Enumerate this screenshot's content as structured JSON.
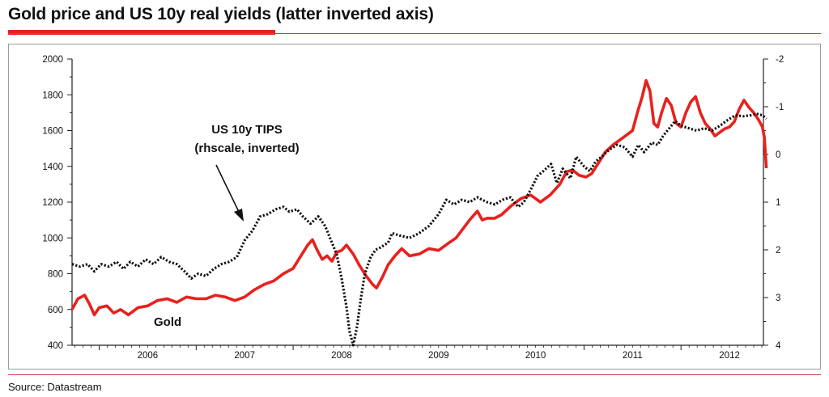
{
  "header": {
    "title": "Gold price and US 10y real yields (latter inverted axis)"
  },
  "footer": {
    "source": "Source: Datastream"
  },
  "colors": {
    "gold": "#e8211d",
    "tips": "#111111",
    "accent_rule": "#e8211d"
  },
  "chart_data": {
    "type": "line",
    "title": "Gold price and US 10y real yields (latter inverted axis)",
    "x_range": [
      2005.72,
      2012.85
    ],
    "x_ticks": [
      "2006",
      "2007",
      "2008",
      "2009",
      "2010",
      "2011",
      "2012"
    ],
    "y_left": {
      "min": 400,
      "max": 2000,
      "ticks": [
        "400",
        "600",
        "800",
        "1000",
        "1200",
        "1400",
        "1600",
        "1800",
        "2000"
      ]
    },
    "y_right": {
      "min": -2,
      "max": 4,
      "inverted": true,
      "ticks": [
        "-2",
        "-1",
        "0",
        "1",
        "2",
        "3",
        "4"
      ]
    },
    "annotations": [
      {
        "name": "tips-label",
        "lines": [
          "US 10y TIPS",
          "(rhscale, inverted)"
        ]
      },
      {
        "name": "gold-label",
        "text": "Gold"
      }
    ],
    "series": [
      {
        "name": "Gold",
        "axis": "left",
        "style": "solid",
        "color": "#e8211d",
        "points": [
          [
            2005.72,
            600
          ],
          [
            2005.78,
            660
          ],
          [
            2005.85,
            680
          ],
          [
            2005.9,
            630
          ],
          [
            2005.95,
            570
          ],
          [
            2006.0,
            610
          ],
          [
            2006.08,
            620
          ],
          [
            2006.15,
            580
          ],
          [
            2006.22,
            600
          ],
          [
            2006.3,
            570
          ],
          [
            2006.4,
            610
          ],
          [
            2006.5,
            620
          ],
          [
            2006.6,
            650
          ],
          [
            2006.7,
            660
          ],
          [
            2006.8,
            640
          ],
          [
            2006.9,
            670
          ],
          [
            2007.0,
            660
          ],
          [
            2007.1,
            660
          ],
          [
            2007.2,
            680
          ],
          [
            2007.3,
            670
          ],
          [
            2007.4,
            650
          ],
          [
            2007.5,
            670
          ],
          [
            2007.6,
            710
          ],
          [
            2007.7,
            740
          ],
          [
            2007.8,
            760
          ],
          [
            2007.9,
            800
          ],
          [
            2008.0,
            830
          ],
          [
            2008.08,
            900
          ],
          [
            2008.15,
            960
          ],
          [
            2008.2,
            990
          ],
          [
            2008.25,
            930
          ],
          [
            2008.3,
            880
          ],
          [
            2008.35,
            900
          ],
          [
            2008.4,
            870
          ],
          [
            2008.45,
            920
          ],
          [
            2008.5,
            930
          ],
          [
            2008.55,
            960
          ],
          [
            2008.62,
            910
          ],
          [
            2008.68,
            850
          ],
          [
            2008.75,
            790
          ],
          [
            2008.82,
            740
          ],
          [
            2008.86,
            720
          ],
          [
            2008.92,
            780
          ],
          [
            2008.98,
            850
          ],
          [
            2009.05,
            900
          ],
          [
            2009.12,
            940
          ],
          [
            2009.2,
            900
          ],
          [
            2009.3,
            910
          ],
          [
            2009.4,
            940
          ],
          [
            2009.5,
            930
          ],
          [
            2009.55,
            950
          ],
          [
            2009.6,
            970
          ],
          [
            2009.68,
            1000
          ],
          [
            2009.75,
            1050
          ],
          [
            2009.82,
            1100
          ],
          [
            2009.9,
            1150
          ],
          [
            2009.95,
            1100
          ],
          [
            2010.0,
            1110
          ],
          [
            2010.08,
            1110
          ],
          [
            2010.15,
            1130
          ],
          [
            2010.25,
            1180
          ],
          [
            2010.35,
            1220
          ],
          [
            2010.45,
            1240
          ],
          [
            2010.55,
            1200
          ],
          [
            2010.65,
            1240
          ],
          [
            2010.75,
            1300
          ],
          [
            2010.82,
            1370
          ],
          [
            2010.88,
            1380
          ],
          [
            2010.95,
            1350
          ],
          [
            2011.02,
            1340
          ],
          [
            2011.08,
            1360
          ],
          [
            2011.15,
            1420
          ],
          [
            2011.22,
            1480
          ],
          [
            2011.3,
            1520
          ],
          [
            2011.4,
            1560
          ],
          [
            2011.5,
            1600
          ],
          [
            2011.55,
            1700
          ],
          [
            2011.6,
            1790
          ],
          [
            2011.64,
            1880
          ],
          [
            2011.68,
            1820
          ],
          [
            2011.72,
            1640
          ],
          [
            2011.76,
            1620
          ],
          [
            2011.8,
            1700
          ],
          [
            2011.85,
            1780
          ],
          [
            2011.9,
            1740
          ],
          [
            2011.95,
            1640
          ],
          [
            2012.0,
            1620
          ],
          [
            2012.05,
            1700
          ],
          [
            2012.1,
            1760
          ],
          [
            2012.15,
            1790
          ],
          [
            2012.2,
            1700
          ],
          [
            2012.25,
            1640
          ],
          [
            2012.3,
            1610
          ],
          [
            2012.35,
            1570
          ],
          [
            2012.4,
            1590
          ],
          [
            2012.45,
            1610
          ],
          [
            2012.5,
            1620
          ],
          [
            2012.55,
            1650
          ],
          [
            2012.6,
            1720
          ],
          [
            2012.65,
            1770
          ],
          [
            2012.7,
            1730
          ],
          [
            2012.75,
            1700
          ],
          [
            2012.8,
            1660
          ],
          [
            2012.84,
            1620
          ],
          [
            2012.86,
            1560
          ],
          [
            2012.88,
            1390
          ]
        ]
      },
      {
        "name": "US 10y TIPS",
        "axis": "right",
        "style": "dotted",
        "color": "#111111",
        "points": [
          [
            2005.72,
            2.3
          ],
          [
            2005.8,
            2.35
          ],
          [
            2005.88,
            2.3
          ],
          [
            2005.95,
            2.45
          ],
          [
            2006.02,
            2.3
          ],
          [
            2006.1,
            2.35
          ],
          [
            2006.18,
            2.25
          ],
          [
            2006.25,
            2.4
          ],
          [
            2006.32,
            2.25
          ],
          [
            2006.4,
            2.35
          ],
          [
            2006.48,
            2.2
          ],
          [
            2006.56,
            2.3
          ],
          [
            2006.64,
            2.15
          ],
          [
            2006.72,
            2.25
          ],
          [
            2006.8,
            2.3
          ],
          [
            2006.88,
            2.45
          ],
          [
            2006.95,
            2.6
          ],
          [
            2007.02,
            2.5
          ],
          [
            2007.1,
            2.55
          ],
          [
            2007.18,
            2.4
          ],
          [
            2007.26,
            2.3
          ],
          [
            2007.34,
            2.25
          ],
          [
            2007.42,
            2.15
          ],
          [
            2007.5,
            1.8
          ],
          [
            2007.58,
            1.6
          ],
          [
            2007.66,
            1.3
          ],
          [
            2007.74,
            1.25
          ],
          [
            2007.82,
            1.15
          ],
          [
            2007.9,
            1.1
          ],
          [
            2007.96,
            1.2
          ],
          [
            2008.04,
            1.15
          ],
          [
            2008.1,
            1.3
          ],
          [
            2008.18,
            1.45
          ],
          [
            2008.26,
            1.3
          ],
          [
            2008.33,
            1.5
          ],
          [
            2008.4,
            1.85
          ],
          [
            2008.45,
            2.1
          ],
          [
            2008.5,
            2.6
          ],
          [
            2008.55,
            3.2
          ],
          [
            2008.58,
            3.7
          ],
          [
            2008.62,
            4.0
          ],
          [
            2008.66,
            3.6
          ],
          [
            2008.7,
            3.0
          ],
          [
            2008.74,
            2.5
          ],
          [
            2008.8,
            2.15
          ],
          [
            2008.85,
            2.0
          ],
          [
            2008.9,
            1.95
          ],
          [
            2008.98,
            1.85
          ],
          [
            2009.02,
            1.65
          ],
          [
            2009.1,
            1.7
          ],
          [
            2009.2,
            1.75
          ],
          [
            2009.3,
            1.65
          ],
          [
            2009.4,
            1.5
          ],
          [
            2009.5,
            1.25
          ],
          [
            2009.58,
            0.95
          ],
          [
            2009.66,
            1.05
          ],
          [
            2009.74,
            0.95
          ],
          [
            2009.82,
            1.0
          ],
          [
            2009.9,
            0.9
          ],
          [
            2010.0,
            1.0
          ],
          [
            2010.08,
            1.05
          ],
          [
            2010.16,
            0.95
          ],
          [
            2010.24,
            0.9
          ],
          [
            2010.32,
            1.1
          ],
          [
            2010.38,
            1.0
          ],
          [
            2010.46,
            0.7
          ],
          [
            2010.52,
            0.45
          ],
          [
            2010.58,
            0.35
          ],
          [
            2010.66,
            0.2
          ],
          [
            2010.72,
            0.6
          ],
          [
            2010.78,
            0.3
          ],
          [
            2010.86,
            0.5
          ],
          [
            2010.92,
            0.05
          ],
          [
            2011.0,
            0.25
          ],
          [
            2011.06,
            0.35
          ],
          [
            2011.12,
            0.15
          ],
          [
            2011.18,
            0.05
          ],
          [
            2011.26,
            -0.1
          ],
          [
            2011.34,
            -0.2
          ],
          [
            2011.42,
            -0.15
          ],
          [
            2011.5,
            0.05
          ],
          [
            2011.56,
            -0.2
          ],
          [
            2011.62,
            -0.05
          ],
          [
            2011.7,
            -0.25
          ],
          [
            2011.76,
            -0.2
          ],
          [
            2011.82,
            -0.4
          ],
          [
            2011.88,
            -0.55
          ],
          [
            2011.94,
            -0.7
          ],
          [
            2012.0,
            -0.6
          ],
          [
            2012.08,
            -0.55
          ],
          [
            2012.16,
            -0.5
          ],
          [
            2012.24,
            -0.55
          ],
          [
            2012.32,
            -0.5
          ],
          [
            2012.4,
            -0.6
          ],
          [
            2012.48,
            -0.72
          ],
          [
            2012.56,
            -0.82
          ],
          [
            2012.64,
            -0.8
          ],
          [
            2012.72,
            -0.82
          ],
          [
            2012.78,
            -0.85
          ],
          [
            2012.84,
            -0.82
          ],
          [
            2012.88,
            -0.75
          ]
        ]
      }
    ]
  }
}
